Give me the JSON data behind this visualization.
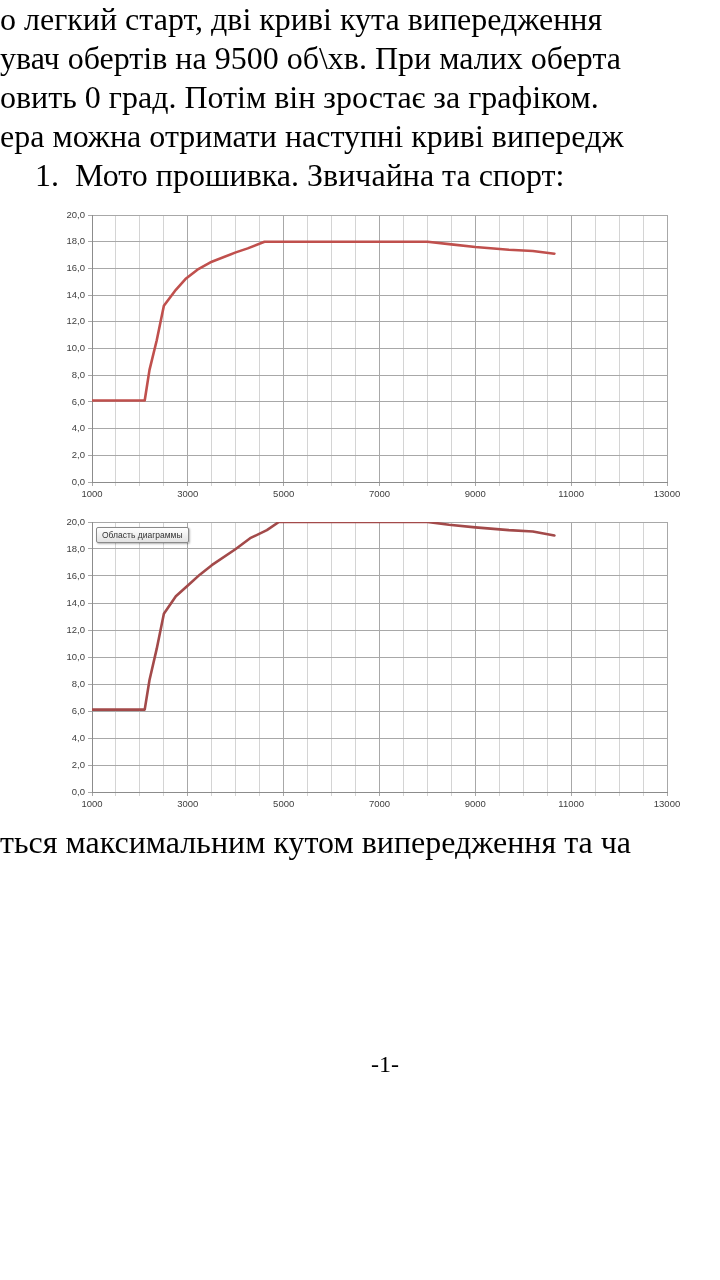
{
  "chart_data": [
    {
      "type": "line",
      "title": "1.  Мото прошивка. Звичайна та спорт:",
      "annotations": [
        "о легкий старт, дві криві кута випередження",
        "увач обертів на 9500 об\\хв. При малих оберта",
        "овить 0 град. Потім він зростає за графіком.",
        "ера можна отримати наступні криві випередж"
      ],
      "x": [
        1000,
        2100,
        2200,
        2350,
        2500,
        2750,
        2950,
        3200,
        3500,
        4000,
        4250,
        4600,
        8000,
        8500,
        9000,
        9700,
        10200,
        10650
      ],
      "values": [
        6.1,
        6.1,
        8.4,
        10.6,
        13.2,
        14.4,
        15.2,
        15.9,
        16.5,
        17.2,
        17.5,
        18.0,
        18.0,
        17.8,
        17.6,
        17.4,
        17.3,
        17.1
      ],
      "color": "#c0504d",
      "xlim": [
        1000,
        13000
      ],
      "xticks": [
        1000,
        {
          "value": 1500,
          "label": null
        },
        {
          "value": 2000,
          "label": null
        },
        {
          "value": 2500,
          "label": null
        },
        3000,
        {
          "value": 3500,
          "label": null
        },
        {
          "value": 4000,
          "label": null
        },
        {
          "value": 4500,
          "label": null
        },
        5000,
        {
          "value": 5500,
          "label": null
        },
        {
          "value": 6000,
          "label": null
        },
        {
          "value": 6500,
          "label": null
        },
        7000,
        {
          "value": 7500,
          "label": null
        },
        {
          "value": 8000,
          "label": null
        },
        {
          "value": 8500,
          "label": null
        },
        9000,
        {
          "value": 9500,
          "label": null
        },
        {
          "value": 10000,
          "label": null
        },
        {
          "value": 10500,
          "label": null
        },
        11000,
        {
          "value": 11500,
          "label": null
        },
        {
          "value": 12000,
          "label": null
        },
        {
          "value": 12500,
          "label": null
        },
        13000
      ],
      "ylim": [
        0,
        20
      ],
      "yticks": [
        {
          "value": 0,
          "label": "0,0"
        },
        {
          "value": 2,
          "label": "2,0"
        },
        {
          "value": 4,
          "label": "4,0"
        },
        {
          "value": 6,
          "label": "6,0"
        },
        {
          "value": 8,
          "label": "8,0"
        },
        {
          "value": 10,
          "label": "10,0"
        },
        {
          "value": 12,
          "label": "12,0"
        },
        {
          "value": 14,
          "label": "14,0"
        },
        {
          "value": 16,
          "label": "16,0"
        },
        {
          "value": 18,
          "label": "18,0"
        },
        {
          "value": 20,
          "label": "20,0"
        }
      ],
      "grid": true
    },
    {
      "type": "line",
      "annotations": [
        "Область диаграммы",
        "ться максимальним кутом випередження та ча",
        "-1-"
      ],
      "x": [
        1000,
        2100,
        2200,
        2350,
        2500,
        2750,
        3000,
        3250,
        3500,
        4000,
        4300,
        4650,
        4900,
        8000,
        8450,
        9000,
        9700,
        10200,
        10650
      ],
      "values": [
        6.1,
        6.1,
        8.3,
        10.6,
        13.2,
        14.5,
        15.3,
        16.1,
        16.8,
        18.0,
        18.8,
        19.4,
        20.0,
        20.0,
        19.8,
        19.6,
        19.4,
        19.3,
        19.0
      ],
      "color": "#a34a4a",
      "xlim": [
        1000,
        13000
      ],
      "xticks": [
        1000,
        {
          "value": 1500,
          "label": null
        },
        {
          "value": 2000,
          "label": null
        },
        {
          "value": 2500,
          "label": null
        },
        3000,
        {
          "value": 3500,
          "label": null
        },
        {
          "value": 4000,
          "label": null
        },
        {
          "value": 4500,
          "label": null
        },
        5000,
        {
          "value": 5500,
          "label": null
        },
        {
          "value": 6000,
          "label": null
        },
        {
          "value": 6500,
          "label": null
        },
        7000,
        {
          "value": 7500,
          "label": null
        },
        {
          "value": 8000,
          "label": null
        },
        {
          "value": 8500,
          "label": null
        },
        9000,
        {
          "value": 9500,
          "label": null
        },
        {
          "value": 10000,
          "label": null
        },
        {
          "value": 10500,
          "label": null
        },
        11000,
        {
          "value": 11500,
          "label": null
        },
        {
          "value": 12000,
          "label": null
        },
        {
          "value": 12500,
          "label": null
        },
        13000
      ],
      "ylim": [
        0,
        20
      ],
      "yticks": [
        {
          "value": 0,
          "label": "0,0"
        },
        {
          "value": 2,
          "label": "2,0"
        },
        {
          "value": 4,
          "label": "4,0"
        },
        {
          "value": 6,
          "label": "6,0"
        },
        {
          "value": 8,
          "label": "8,0"
        },
        {
          "value": 10,
          "label": "10,0"
        },
        {
          "value": 12,
          "label": "12,0"
        },
        {
          "value": 14,
          "label": "14,0"
        },
        {
          "value": 16,
          "label": "16,0"
        },
        {
          "value": 18,
          "label": "18,0"
        },
        {
          "value": 20,
          "label": "20,0"
        }
      ],
      "grid": true
    }
  ]
}
